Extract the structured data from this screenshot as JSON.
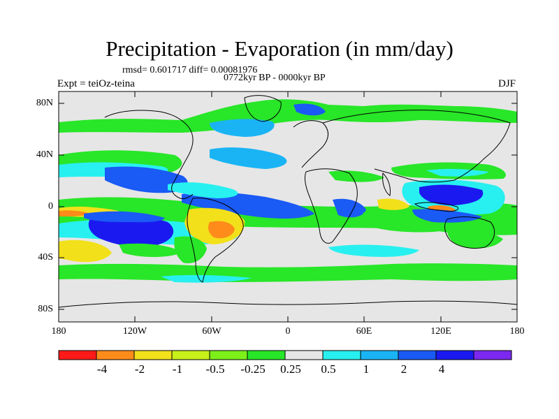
{
  "title": "Precipitation - Evaporation (in mm/day)",
  "stats": "rmsd= 0.601717 diff= 0.00081976",
  "period": "0772kyr BP - 0000kyr BP",
  "experiment": "Expt = teiOz-teina",
  "season": "DJF",
  "y_ticks": [
    "80N",
    "40N",
    "0",
    "40S",
    "80S"
  ],
  "x_ticks": [
    "180",
    "120W",
    "60W",
    "0",
    "60E",
    "120E",
    "180"
  ],
  "colorbar": {
    "labels": [
      "-4",
      "-2",
      "-1",
      "-0.5",
      "-0.25",
      "0.25",
      "0.5",
      "1",
      "2",
      "4"
    ],
    "colors": [
      "#ff1a1a",
      "#ff8c1a",
      "#f2e01a",
      "#c8f01a",
      "#7df01a",
      "#28e628",
      "#e6e6e6",
      "#28f0f0",
      "#1ab4f5",
      "#1a5af5",
      "#1a1af0",
      "#7d28f0"
    ]
  },
  "map": {
    "ocean_gray": "#e6e6e6",
    "features": [
      {
        "name": "east-pacific-neg-band",
        "value": "-0.25 to -1",
        "color": "#28e628"
      },
      {
        "name": "pacific-south-blob",
        "value": "2 to 4",
        "color": "#1a1af0"
      },
      {
        "name": "atlantic-itcz",
        "value": "1 to 2",
        "color": "#1a5af5"
      },
      {
        "name": "south-america-dry",
        "value": "-2 to -4",
        "color": "#ff8c1a"
      },
      {
        "name": "maritime-continent",
        "value": "2 to 4",
        "color": "#1a1af0"
      },
      {
        "name": "north-atlantic-storm",
        "value": "0.5 to 1",
        "color": "#1ab4f5"
      }
    ]
  }
}
